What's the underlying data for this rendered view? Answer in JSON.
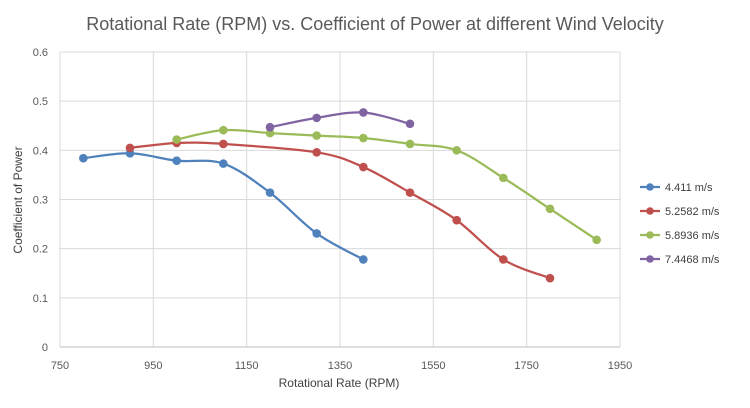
{
  "chart_data": {
    "type": "line",
    "title": "Rotational Rate (RPM) vs. Coefficient of Power at different Wind Velocity",
    "xlabel": "Rotational Rate (RPM)",
    "ylabel": "Coefficient of Power",
    "xlim": [
      750,
      1950
    ],
    "ylim": [
      0,
      0.6
    ],
    "xticks": [
      750,
      950,
      1150,
      1350,
      1550,
      1750,
      1950
    ],
    "yticks": [
      0,
      0.1,
      0.2,
      0.3,
      0.4,
      0.5,
      0.6
    ],
    "xtick_labels": [
      "750",
      "950",
      "1150",
      "1350",
      "1550",
      "1750",
      "1950"
    ],
    "ytick_labels": [
      "0",
      "0.1",
      "0.2",
      "0.3",
      "0.4",
      "0.5",
      "0.6"
    ],
    "grid": true,
    "legend_position": "right",
    "smooth": true,
    "series": [
      {
        "name": "4.411 m/s",
        "color": "#4f81bd",
        "x": [
          800,
          900,
          1000,
          1100,
          1200,
          1300,
          1400
        ],
        "y": [
          0.384,
          0.394,
          0.379,
          0.373,
          0.314,
          0.231,
          0.178
        ]
      },
      {
        "name": "5.2582 m/s",
        "color": "#c0504d",
        "x": [
          900,
          1000,
          1100,
          1300,
          1400,
          1500,
          1600,
          1700,
          1800
        ],
        "y": [
          0.405,
          0.415,
          0.413,
          0.396,
          0.366,
          0.314,
          0.258,
          0.178,
          0.14
        ]
      },
      {
        "name": "5.8936 m/s",
        "color": "#9bbb59",
        "x": [
          1000,
          1100,
          1200,
          1300,
          1400,
          1500,
          1600,
          1700,
          1800,
          1900
        ],
        "y": [
          0.422,
          0.441,
          0.435,
          0.43,
          0.425,
          0.413,
          0.4,
          0.344,
          0.281,
          0.218
        ]
      },
      {
        "name": "7.4468 m/s",
        "color": "#8064a2",
        "x": [
          1200,
          1300,
          1400,
          1500
        ],
        "y": [
          0.447,
          0.466,
          0.477,
          0.454
        ]
      }
    ]
  }
}
